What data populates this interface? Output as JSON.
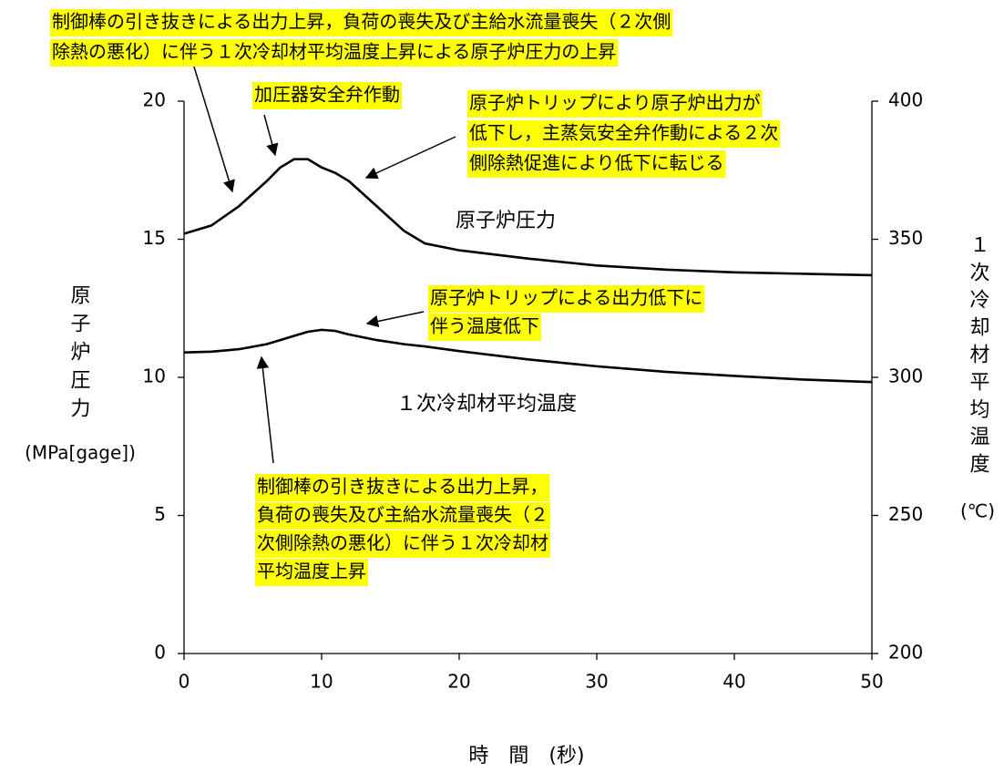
{
  "chart_data": {
    "type": "line",
    "x": [
      0,
      2,
      4,
      6,
      7,
      8,
      9,
      10,
      11,
      12,
      14,
      16,
      17.5,
      20,
      25,
      30,
      35,
      40,
      45,
      50
    ],
    "series": [
      {
        "name": "原子炉圧力",
        "color": "#000000",
        "axis": "y",
        "values": [
          15.2,
          15.5,
          16.2,
          17.1,
          17.6,
          17.9,
          17.9,
          17.6,
          17.4,
          17.1,
          16.2,
          15.3,
          14.85,
          14.6,
          14.3,
          14.05,
          13.9,
          13.8,
          13.75,
          13.7
        ]
      },
      {
        "name": "１次冷却材平均温度",
        "color": "#000000",
        "axis": "y2",
        "values": [
          309,
          309.3,
          310.2,
          312,
          313.5,
          315,
          316.5,
          317.2,
          316.8,
          315.5,
          313.5,
          312,
          311.2,
          309.5,
          306.5,
          304,
          302,
          300.5,
          299.2,
          298.3
        ]
      }
    ],
    "xlim": [
      0,
      50
    ],
    "xticks": [
      0,
      10,
      20,
      30,
      40,
      50
    ],
    "ylim": [
      0,
      20
    ],
    "yticks": [
      0,
      5,
      10,
      15,
      20
    ],
    "y2lim": [
      200,
      400
    ],
    "y2ticks": [
      200,
      250,
      300,
      350,
      400
    ],
    "xlabel": "時　間　(秒)",
    "ylabel": "原子炉圧力",
    "ylabel_unit": "(MPa[gage])",
    "y2label": "１次冷却材平均温度",
    "y2label_unit": "(℃)",
    "annotations": [
      {
        "lines": [
          "制御棒の引き抜きによる出力上昇，負荷の喪失及び主給水流量喪失（２次側",
          "除熱の悪化）に伴う１次冷却材平均温度上昇による原子炉圧力の上昇"
        ]
      },
      {
        "lines": [
          "加圧器安全弁作動"
        ]
      },
      {
        "lines": [
          "原子炉トリップにより原子炉出力が",
          "低下し，主蒸気安全弁作動による２次",
          "側除熱促進により低下に転じる"
        ]
      },
      {
        "lines": [
          "原子炉トリップによる出力低下に",
          "伴う温度低下"
        ]
      },
      {
        "lines": [
          "制御棒の引き抜きによる出力上昇，",
          "負荷の喪失及び主給水流量喪失（２",
          "次側除熱の悪化）に伴う１次冷却材",
          "平均温度上昇"
        ]
      }
    ]
  }
}
